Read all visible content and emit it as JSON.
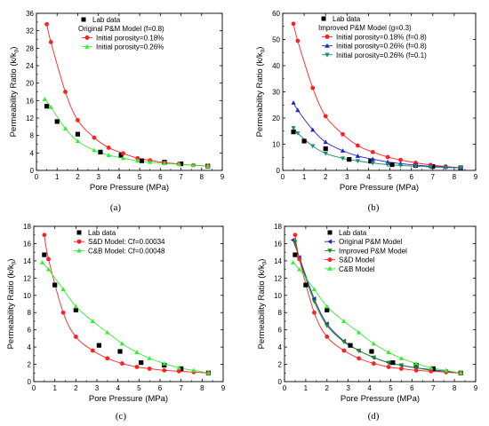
{
  "panels": [
    {
      "id": "a",
      "caption": "(a)",
      "title": "",
      "xlabel": "Pore Pressure (MPa)",
      "ylabel": "Permeability Ratio (k/k",
      "ylabel_sub": "0",
      "ylabel_end": ")",
      "xlim": [
        0,
        9
      ],
      "ylim": [
        0,
        36
      ],
      "xticks": [
        "0",
        "1",
        "2",
        "3",
        "4",
        "5",
        "6",
        "7",
        "8",
        "9"
      ],
      "yticks": [
        "0",
        "4",
        "8",
        "12",
        "16",
        "20",
        "24",
        "28",
        "32",
        "36"
      ],
      "legend": [
        {
          "text": "Lab data",
          "marker": "square",
          "color": "#000000",
          "indent": 0
        },
        {
          "text": "Original P&M Model (f=0.8)",
          "marker": "none",
          "color": "#000000",
          "indent": 0
        },
        {
          "text": "Initial porosity=0.18%",
          "marker": "circle",
          "color": "#ff2020",
          "line": true,
          "indent": 1
        },
        {
          "text": "Initial porosity=0.26%",
          "marker": "triangle-up",
          "color": "#33ee33",
          "line": true,
          "indent": 1
        }
      ]
    },
    {
      "id": "b",
      "caption": "(b)",
      "title": "",
      "xlabel": "Pore Pressure (MPa)",
      "ylabel": "Permeability Ratio (k/k",
      "ylabel_sub": "0",
      "ylabel_end": ")",
      "xlim": [
        0,
        9
      ],
      "ylim": [
        0,
        60
      ],
      "xticks": [
        "0",
        "1",
        "2",
        "3",
        "4",
        "5",
        "6",
        "7",
        "8",
        "9"
      ],
      "yticks": [
        "0",
        "10",
        "20",
        "30",
        "40",
        "50",
        "60"
      ],
      "legend": [
        {
          "text": "Lab data",
          "marker": "square",
          "color": "#000000",
          "indent": 0
        },
        {
          "text": "Improved P&M Model (g=0.3)",
          "marker": "none",
          "color": "#000000",
          "indent": 0
        },
        {
          "text": "Initial porosity=0.18% (f=0.8)",
          "marker": "circle",
          "color": "#ff2020",
          "line": true,
          "indent": 1
        },
        {
          "text": "Initial porosity=0.26% (f=0.8)",
          "marker": "triangle-up",
          "color": "#2222cc",
          "line": true,
          "indent": 1
        },
        {
          "text": "Initial porosity=0.26% (f=0.1)",
          "marker": "triangle-down",
          "color": "#1a8a7a",
          "line": true,
          "indent": 1
        }
      ]
    },
    {
      "id": "c",
      "caption": "(c)",
      "title": "",
      "xlabel": "Pore Pressure (MPa)",
      "ylabel": "Permeability Ratio (k/k",
      "ylabel_sub": "0",
      "ylabel_end": ")",
      "xlim": [
        0,
        9
      ],
      "ylim": [
        0,
        18
      ],
      "xticks": [
        "0",
        "1",
        "2",
        "3",
        "4",
        "5",
        "6",
        "7",
        "8",
        "9"
      ],
      "yticks": [
        "0",
        "2",
        "4",
        "6",
        "8",
        "10",
        "12",
        "14",
        "16",
        "18"
      ],
      "legend": [
        {
          "text": "Lab data",
          "marker": "square",
          "color": "#000000",
          "indent": 0
        },
        {
          "text": "S&D Model: Cf=0.00034",
          "marker": "circle",
          "color": "#ff2020",
          "line": true,
          "indent": 0
        },
        {
          "text": "C&B Model: Cf=0.00048",
          "marker": "triangle-up",
          "color": "#33ee33",
          "line": true,
          "indent": 0
        }
      ]
    },
    {
      "id": "d",
      "caption": "(d)",
      "title": "",
      "xlabel": "Pore Pressure (MPa)",
      "ylabel": "Permeability Ratio (k/k",
      "ylabel_sub": "0",
      "ylabel_end": ")",
      "xlim": [
        0,
        9
      ],
      "ylim": [
        0,
        18
      ],
      "xticks": [
        "0",
        "1",
        "2",
        "3",
        "4",
        "5",
        "6",
        "7",
        "8",
        "9"
      ],
      "yticks": [
        "0",
        "2",
        "4",
        "6",
        "8",
        "10",
        "12",
        "14",
        "16",
        "18"
      ],
      "legend": [
        {
          "text": "Lab data",
          "marker": "square",
          "color": "#000000",
          "indent": 0
        },
        {
          "text": "Original P&M Model",
          "marker": "triangle-left",
          "color": "#2222cc",
          "line": true,
          "indent": 0
        },
        {
          "text": "Improved P&M Model",
          "marker": "triangle-down",
          "color": "#1a8a1a",
          "line": true,
          "indent": 0
        },
        {
          "text": "S&D Model",
          "marker": "circle",
          "color": "#ff2020",
          "line": true,
          "indent": 0
        },
        {
          "text": "C&B Model",
          "marker": "triangle-up",
          "color": "#33ee33",
          "line": true,
          "indent": 0
        }
      ]
    }
  ],
  "chart_data": [
    {
      "type": "scatter",
      "panel": "a",
      "xlabel": "Pore Pressure (MPa)",
      "ylabel": "Permeability Ratio (k/k0)",
      "xlim": [
        0,
        9
      ],
      "ylim": [
        0,
        36
      ],
      "series": [
        {
          "name": "Lab data",
          "marker": "square",
          "color": "#000000",
          "x": [
            0.5,
            1.0,
            2.0,
            3.1,
            4.1,
            5.1,
            6.2,
            7.0,
            8.3
          ],
          "y": [
            14.7,
            11.2,
            8.3,
            4.2,
            3.5,
            2.2,
            1.9,
            1.5,
            1.0
          ]
        },
        {
          "name": "Initial porosity=0.18%",
          "marker": "circle",
          "color": "#ff2020",
          "curve": true,
          "x": [
            0.5,
            0.7,
            1.4,
            2.0,
            2.8,
            3.5,
            4.2,
            4.9,
            5.5,
            6.2,
            6.9,
            7.6,
            8.3
          ],
          "y": [
            33.5,
            29.4,
            18.0,
            11.5,
            7.5,
            5.2,
            3.9,
            2.8,
            2.3,
            1.8,
            1.5,
            1.2,
            1.0
          ]
        },
        {
          "name": "Initial porosity=0.26%",
          "marker": "triangle-up",
          "color": "#33ee33",
          "curve": true,
          "x": [
            0.4,
            0.7,
            1.4,
            2.0,
            2.8,
            3.5,
            4.2,
            4.9,
            5.5,
            6.2,
            6.9,
            7.6,
            8.3
          ],
          "y": [
            16.3,
            14.5,
            9.6,
            6.7,
            4.6,
            3.5,
            2.8,
            2.2,
            1.9,
            1.6,
            1.4,
            1.2,
            1.0
          ]
        }
      ]
    },
    {
      "type": "scatter",
      "panel": "b",
      "xlabel": "Pore Pressure (MPa)",
      "ylabel": "Permeability Ratio (k/k0)",
      "xlim": [
        0,
        9
      ],
      "ylim": [
        0,
        60
      ],
      "series": [
        {
          "name": "Lab data",
          "marker": "square",
          "color": "#000000",
          "x": [
            0.5,
            1.0,
            2.0,
            3.1,
            4.1,
            5.1,
            6.2,
            7.0,
            8.3
          ],
          "y": [
            14.7,
            11.2,
            8.3,
            4.2,
            3.5,
            2.2,
            1.9,
            1.5,
            1.0
          ]
        },
        {
          "name": "Initial porosity=0.18% (f=0.8)",
          "marker": "circle",
          "color": "#ff2020",
          "curve": true,
          "x": [
            0.5,
            0.7,
            1.4,
            2.0,
            2.8,
            3.5,
            4.2,
            4.9,
            5.5,
            6.2,
            6.9,
            7.6,
            8.3
          ],
          "y": [
            56.0,
            49.5,
            31.5,
            20.7,
            13.8,
            9.5,
            7.0,
            5.1,
            4.0,
            2.9,
            2.1,
            1.5,
            1.0
          ]
        },
        {
          "name": "Initial porosity=0.26% (f=0.8)",
          "marker": "triangle-up",
          "color": "#2222cc",
          "curve": true,
          "x": [
            0.5,
            0.7,
            1.4,
            2.0,
            2.8,
            3.5,
            4.2,
            4.9,
            5.5,
            6.2,
            6.9,
            7.6,
            8.3
          ],
          "y": [
            25.8,
            23.0,
            15.5,
            10.8,
            7.5,
            5.5,
            4.3,
            3.2,
            2.6,
            2.0,
            1.6,
            1.3,
            1.0
          ]
        },
        {
          "name": "Initial porosity=0.26% (f=0.1)",
          "marker": "triangle-down",
          "color": "#1a8a7a",
          "curve": true,
          "x": [
            0.5,
            0.7,
            1.4,
            2.0,
            2.8,
            3.5,
            4.2,
            4.9,
            5.5,
            6.2,
            6.9,
            7.6,
            8.3
          ],
          "y": [
            16.2,
            14.2,
            9.3,
            6.5,
            4.6,
            3.6,
            2.8,
            2.2,
            1.9,
            1.6,
            1.3,
            1.1,
            1.0
          ]
        }
      ]
    },
    {
      "type": "scatter",
      "panel": "c",
      "xlabel": "Pore Pressure (MPa)",
      "ylabel": "Permeability Ratio (k/k0)",
      "xlim": [
        0,
        9
      ],
      "ylim": [
        0,
        18
      ],
      "series": [
        {
          "name": "Lab data",
          "marker": "square",
          "color": "#000000",
          "x": [
            0.5,
            1.0,
            2.0,
            3.1,
            4.1,
            5.1,
            6.2,
            7.0,
            8.3
          ],
          "y": [
            14.7,
            11.2,
            8.3,
            4.2,
            3.5,
            2.2,
            1.9,
            1.5,
            1.0
          ]
        },
        {
          "name": "S&D Model: Cf=0.00034",
          "marker": "circle",
          "color": "#ff2020",
          "curve": true,
          "x": [
            0.5,
            0.7,
            1.4,
            2.0,
            2.8,
            3.5,
            4.2,
            4.9,
            5.5,
            6.2,
            6.9,
            7.6,
            8.3
          ],
          "y": [
            17.0,
            14.2,
            8.0,
            5.2,
            3.6,
            2.7,
            2.1,
            1.7,
            1.5,
            1.3,
            1.2,
            1.1,
            1.0
          ]
        },
        {
          "name": "C&B Model: Cf=0.00048",
          "marker": "triangle-up",
          "color": "#33ee33",
          "curve": true,
          "x": [
            0.4,
            0.7,
            1.4,
            2.0,
            2.8,
            3.5,
            4.2,
            4.9,
            5.5,
            6.2,
            6.9,
            7.6,
            8.3
          ],
          "y": [
            13.8,
            13.0,
            10.7,
            8.7,
            7.0,
            5.7,
            4.4,
            3.4,
            2.7,
            2.1,
            1.6,
            1.3,
            1.0
          ]
        }
      ]
    },
    {
      "type": "scatter",
      "panel": "d",
      "xlabel": "Pore Pressure (MPa)",
      "ylabel": "Permeability Ratio (k/k0)",
      "xlim": [
        0,
        9
      ],
      "ylim": [
        0,
        18
      ],
      "series": [
        {
          "name": "Lab data",
          "marker": "square",
          "color": "#000000",
          "x": [
            0.5,
            1.0,
            2.0,
            3.1,
            4.1,
            5.1,
            6.2,
            7.0,
            8.3
          ],
          "y": [
            14.7,
            11.2,
            8.3,
            4.2,
            3.5,
            2.2,
            1.9,
            1.5,
            1.0
          ]
        },
        {
          "name": "Original P&M Model",
          "marker": "triangle-left",
          "color": "#2222cc",
          "curve": true,
          "x": [
            0.4,
            0.7,
            1.4,
            2.0,
            2.8,
            3.5,
            4.2,
            4.9,
            5.5,
            6.2,
            6.9,
            7.6,
            8.3
          ],
          "y": [
            16.4,
            14.4,
            9.6,
            6.7,
            4.7,
            3.6,
            2.8,
            2.2,
            1.9,
            1.6,
            1.4,
            1.2,
            1.0
          ]
        },
        {
          "name": "Improved P&M Model",
          "marker": "triangle-down",
          "color": "#1a8a1a",
          "curve": true,
          "x": [
            0.5,
            0.7,
            1.4,
            2.0,
            2.8,
            3.5,
            4.2,
            4.9,
            5.5,
            6.2,
            6.9,
            7.6,
            8.3
          ],
          "y": [
            16.2,
            14.2,
            9.3,
            6.5,
            4.6,
            3.6,
            2.8,
            2.2,
            1.9,
            1.6,
            1.3,
            1.1,
            1.0
          ]
        },
        {
          "name": "S&D Model",
          "marker": "circle",
          "color": "#ff2020",
          "curve": true,
          "x": [
            0.5,
            0.7,
            1.4,
            2.0,
            2.8,
            3.5,
            4.2,
            4.9,
            5.5,
            6.2,
            6.9,
            7.6,
            8.3
          ],
          "y": [
            17.0,
            14.2,
            8.0,
            5.2,
            3.6,
            2.7,
            2.1,
            1.7,
            1.5,
            1.3,
            1.2,
            1.1,
            1.0
          ]
        },
        {
          "name": "C&B Model",
          "marker": "triangle-up",
          "color": "#33ee33",
          "curve": true,
          "x": [
            0.4,
            0.7,
            1.4,
            2.0,
            2.8,
            3.5,
            4.2,
            4.9,
            5.5,
            6.2,
            6.9,
            7.6,
            8.3
          ],
          "y": [
            13.8,
            13.0,
            10.7,
            8.7,
            7.0,
            5.7,
            4.4,
            3.4,
            2.7,
            2.1,
            1.6,
            1.3,
            1.0
          ]
        }
      ]
    }
  ]
}
